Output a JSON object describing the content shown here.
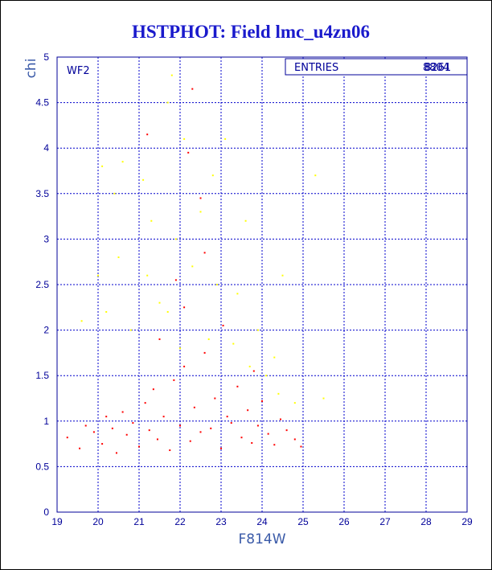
{
  "chart_data": {
    "type": "scatter",
    "title": "HSTPHOT: Field lmc_u4zn06",
    "xlabel": "F814W",
    "ylabel": "chi",
    "xlim": [
      19,
      29
    ],
    "ylim": [
      0,
      5
    ],
    "xticks": [
      "19",
      "20",
      "21",
      "22",
      "23",
      "24",
      "25",
      "26",
      "27",
      "28",
      "29"
    ],
    "yticks": [
      "0",
      "0.5",
      "1",
      "1.5",
      "2",
      "2.5",
      "3",
      "3.5",
      "4",
      "4.5",
      "5"
    ],
    "grid": true,
    "panel_label": "WF2",
    "stats": {
      "label": "ENTRIES",
      "values": [
        "8804",
        "8261"
      ]
    },
    "series": [
      {
        "color": "#ff0000",
        "points": [
          [
            19.25,
            0.82
          ],
          [
            19.55,
            0.7
          ],
          [
            19.7,
            0.95
          ],
          [
            19.9,
            0.88
          ],
          [
            20.1,
            0.75
          ],
          [
            20.2,
            1.05
          ],
          [
            20.35,
            0.92
          ],
          [
            20.45,
            0.65
          ],
          [
            20.6,
            1.1
          ],
          [
            20.7,
            0.85
          ],
          [
            20.85,
            0.98
          ],
          [
            21.0,
            0.72
          ],
          [
            21.15,
            1.2
          ],
          [
            21.25,
            0.9
          ],
          [
            21.35,
            1.35
          ],
          [
            21.45,
            0.8
          ],
          [
            21.6,
            1.05
          ],
          [
            21.75,
            0.68
          ],
          [
            21.85,
            1.45
          ],
          [
            22.0,
            0.95
          ],
          [
            22.1,
            1.6
          ],
          [
            22.25,
            0.78
          ],
          [
            22.35,
            1.15
          ],
          [
            22.5,
            0.88
          ],
          [
            22.6,
            1.75
          ],
          [
            22.75,
            0.92
          ],
          [
            22.85,
            1.25
          ],
          [
            23.0,
            0.7
          ],
          [
            23.15,
            1.05
          ],
          [
            23.25,
            0.98
          ],
          [
            23.4,
            1.38
          ],
          [
            23.5,
            0.82
          ],
          [
            23.65,
            1.12
          ],
          [
            23.75,
            0.76
          ],
          [
            23.9,
            0.95
          ],
          [
            24.0,
            1.22
          ],
          [
            24.15,
            0.86
          ],
          [
            24.3,
            0.74
          ],
          [
            24.45,
            1.02
          ],
          [
            24.6,
            0.9
          ],
          [
            24.8,
            0.8
          ],
          [
            24.95,
            0.72
          ],
          [
            21.2,
            4.15
          ],
          [
            22.3,
            4.65
          ],
          [
            22.5,
            3.45
          ],
          [
            22.2,
            3.95
          ],
          [
            22.6,
            2.85
          ],
          [
            21.9,
            2.55
          ],
          [
            22.1,
            2.25
          ],
          [
            23.05,
            2.05
          ],
          [
            21.5,
            1.9
          ],
          [
            23.8,
            1.55
          ]
        ]
      },
      {
        "color": "#ffff00",
        "points": [
          [
            20.1,
            3.8
          ],
          [
            20.6,
            3.85
          ],
          [
            21.1,
            3.65
          ],
          [
            21.7,
            4.5
          ],
          [
            21.8,
            4.8
          ],
          [
            22.1,
            4.1
          ],
          [
            22.5,
            3.3
          ],
          [
            22.8,
            3.7
          ],
          [
            23.1,
            4.1
          ],
          [
            23.6,
            3.2
          ],
          [
            24.5,
            2.6
          ],
          [
            25.3,
            3.7
          ],
          [
            20.4,
            3.5
          ],
          [
            21.3,
            3.2
          ],
          [
            21.9,
            3.0
          ],
          [
            22.3,
            2.7
          ],
          [
            22.9,
            2.5
          ],
          [
            23.4,
            2.4
          ],
          [
            23.9,
            2.0
          ],
          [
            24.3,
            1.7
          ],
          [
            24.8,
            1.2
          ],
          [
            25.5,
            1.25
          ],
          [
            20.2,
            2.2
          ],
          [
            20.8,
            2.0
          ],
          [
            21.5,
            2.3
          ],
          [
            21.7,
            2.2
          ],
          [
            22.0,
            1.8
          ],
          [
            22.7,
            1.9
          ],
          [
            23.3,
            1.85
          ],
          [
            23.7,
            1.6
          ],
          [
            24.1,
            1.5
          ],
          [
            24.4,
            1.3
          ],
          [
            20.0,
            2.6
          ],
          [
            19.6,
            2.1
          ],
          [
            20.5,
            2.8
          ],
          [
            21.2,
            2.6
          ]
        ]
      }
    ]
  }
}
